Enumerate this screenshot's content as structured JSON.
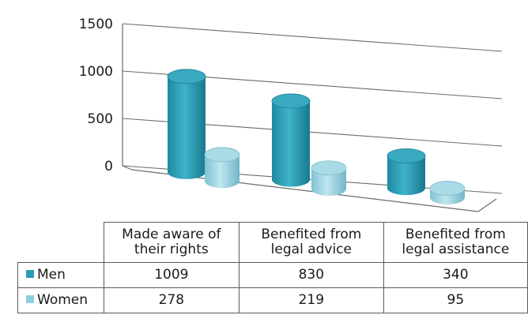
{
  "chart_data": {
    "type": "bar",
    "categories": [
      [
        "Made aware of",
        "their rights"
      ],
      [
        "Benefited from",
        "legal advice"
      ],
      [
        "Benefited from",
        "legal assistance"
      ]
    ],
    "series": [
      {
        "name": "Men",
        "values": [
          1009,
          830,
          340
        ],
        "color": "#2a9cb3"
      },
      {
        "name": "Women",
        "values": [
          278,
          219,
          95
        ],
        "color": "#8fd0df"
      }
    ],
    "yticks": [
      "0",
      "500",
      "1000",
      "1500"
    ],
    "ylim": [
      0,
      1500
    ],
    "grid": true,
    "legend": "data-table",
    "title": "",
    "xlabel": "",
    "ylabel": ""
  }
}
